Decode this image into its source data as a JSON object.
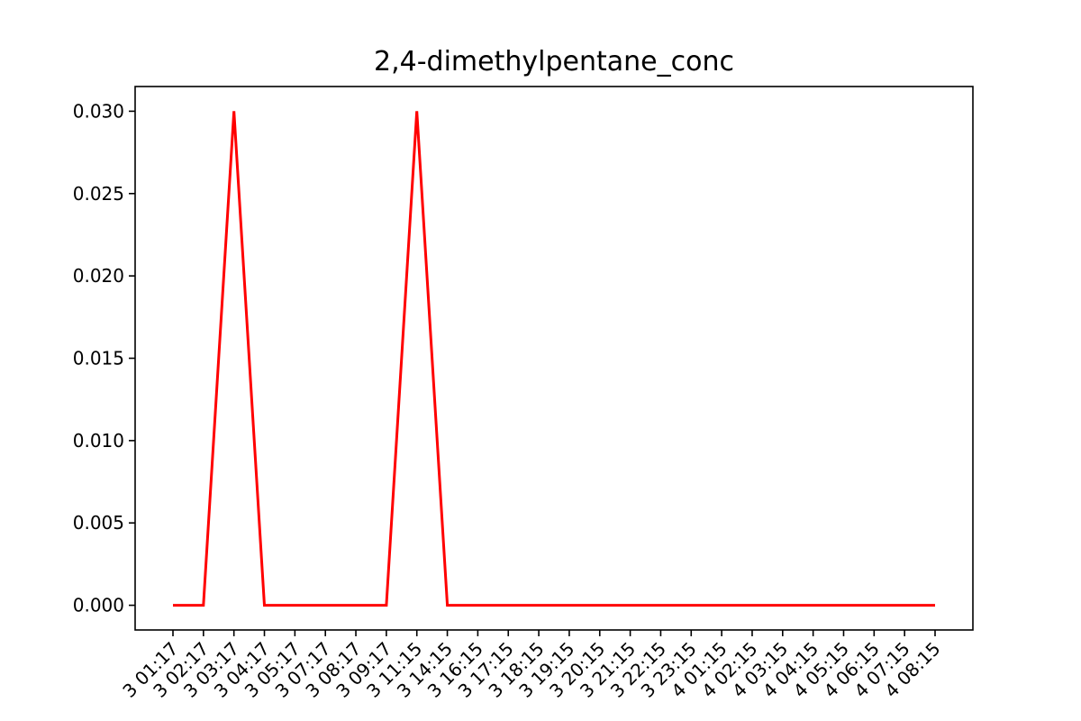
{
  "chart_data": {
    "type": "line",
    "title": "2,4-dimethylpentane_conc",
    "xlabel": "",
    "ylabel": "",
    "x": [
      "3 01:17",
      "3 02:17",
      "3 03:17",
      "3 04:17",
      "3 05:17",
      "3 07:17",
      "3 08:17",
      "3 09:17",
      "3 11:15",
      "3 14:15",
      "3 16:15",
      "3 17:15",
      "3 18:15",
      "3 19:15",
      "3 20:15",
      "3 21:15",
      "3 22:15",
      "3 23:15",
      "4 01:15",
      "4 02:15",
      "4 03:15",
      "4 04:15",
      "4 05:15",
      "4 06:15",
      "4 07:15",
      "4 08:15"
    ],
    "series": [
      {
        "color": "#ff0000",
        "values": [
          0,
          0,
          0.03,
          0,
          0,
          0,
          0,
          0,
          0.03,
          0,
          0,
          0,
          0,
          0,
          0,
          0,
          0,
          0,
          0,
          0,
          0,
          0,
          0,
          0,
          0,
          0
        ]
      }
    ],
    "yticks": [
      "0.000",
      "0.005",
      "0.010",
      "0.015",
      "0.020",
      "0.025",
      "0.030"
    ],
    "ylim": [
      -0.0015,
      0.0315
    ],
    "grid": false,
    "legend": "none"
  }
}
